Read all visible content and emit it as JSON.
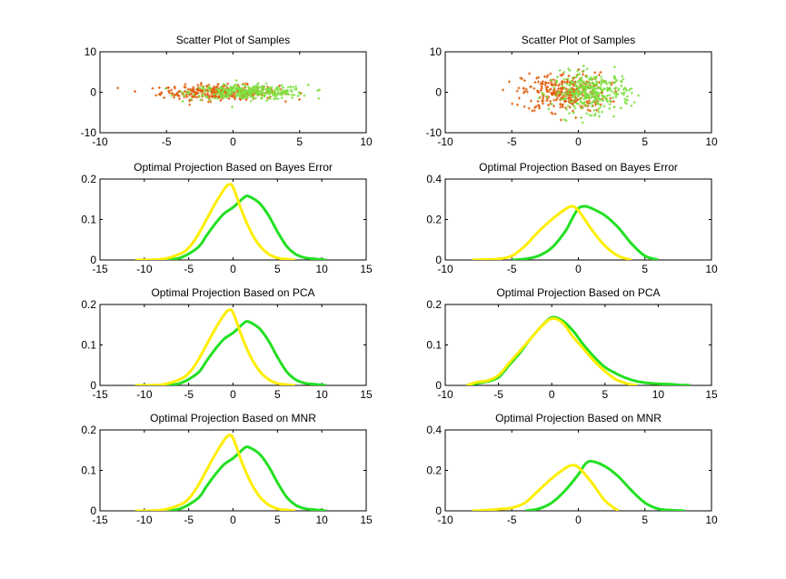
{
  "figure": {
    "background": "#ffffff",
    "colors": {
      "green": "#22e022",
      "yellow": "#ffee00",
      "orange": "#e06010",
      "lightgreen": "#7ee040"
    }
  },
  "chart_data": [
    {
      "type": "scatter",
      "title": "Scatter Plot of Samples",
      "xlim": [
        -10,
        10
      ],
      "ylim": [
        -10,
        10
      ],
      "xticks": [
        -10,
        -5,
        0,
        5,
        10
      ],
      "yticks": [
        -10,
        0,
        10
      ],
      "series": [
        {
          "color": "orange",
          "cloud": {
            "mean": [
              -1,
              0
            ],
            "sd": [
              2.2,
              0.9
            ],
            "count": 320,
            "xrange": [
              -9.8,
              6.8
            ]
          }
        },
        {
          "color": "lightgreen",
          "cloud": {
            "mean": [
              1.2,
              0
            ],
            "sd": [
              2.2,
              0.9
            ],
            "count": 320,
            "xrange": [
              -6,
              7.8
            ]
          }
        }
      ]
    },
    {
      "type": "scatter",
      "title": "Scatter Plot of Samples",
      "xlim": [
        -10,
        10
      ],
      "ylim": [
        -10,
        10
      ],
      "xticks": [
        -10,
        -5,
        0,
        5,
        10
      ],
      "yticks": [
        -10,
        0,
        10
      ],
      "series": [
        {
          "color": "orange",
          "cloud": {
            "mean": [
              -1,
              0
            ],
            "sd": [
              1.6,
              2.4
            ],
            "count": 320,
            "xrange": [
              -6.8,
              3.5
            ]
          }
        },
        {
          "color": "lightgreen",
          "cloud": {
            "mean": [
              1,
              0
            ],
            "sd": [
              1.5,
              2.4
            ],
            "count": 320,
            "xrange": [
              -3,
              4.6
            ]
          }
        }
      ]
    },
    {
      "type": "line",
      "title": "Optimal Projection Based on Bayes Error",
      "xlim": [
        -15,
        15
      ],
      "ylim": [
        0,
        0.2
      ],
      "xticks": [
        -15,
        -10,
        -5,
        0,
        5,
        10,
        15
      ],
      "yticks": [
        0,
        0.1,
        0.2
      ],
      "series": [
        {
          "color": "green",
          "x": [
            -8,
            -6,
            -4,
            -3,
            -2,
            -1,
            0,
            1,
            1.5,
            2,
            3,
            4,
            5,
            6,
            7,
            8,
            9,
            10,
            10.5
          ],
          "y": [
            0,
            0.005,
            0.03,
            0.06,
            0.09,
            0.115,
            0.13,
            0.15,
            0.158,
            0.155,
            0.14,
            0.11,
            0.07,
            0.035,
            0.015,
            0.006,
            0.003,
            0.001,
            0
          ]
        },
        {
          "color": "yellow",
          "x": [
            -11,
            -8,
            -6,
            -5,
            -4,
            -3,
            -2,
            -1,
            -0.5,
            0,
            1,
            2,
            3,
            4,
            5,
            6,
            7
          ],
          "y": [
            0,
            0.002,
            0.015,
            0.03,
            0.06,
            0.1,
            0.14,
            0.175,
            0.186,
            0.18,
            0.12,
            0.07,
            0.035,
            0.015,
            0.005,
            0.002,
            0
          ]
        }
      ]
    },
    {
      "type": "line",
      "title": "Optimal Projection Based on Bayes Error",
      "xlim": [
        -10,
        10
      ],
      "ylim": [
        0,
        0.4
      ],
      "xticks": [
        -10,
        -5,
        0,
        5,
        10
      ],
      "yticks": [
        0,
        0.2,
        0.4
      ],
      "series": [
        {
          "color": "green",
          "x": [
            -5,
            -4,
            -3,
            -2,
            -1,
            -0.5,
            0,
            0.5,
            1,
            2,
            3,
            4,
            5,
            6
          ],
          "y": [
            0,
            0.005,
            0.02,
            0.06,
            0.14,
            0.2,
            0.255,
            0.265,
            0.255,
            0.22,
            0.16,
            0.08,
            0.02,
            0
          ]
        },
        {
          "color": "yellow",
          "x": [
            -8,
            -7,
            -6,
            -5,
            -4,
            -3,
            -2,
            -1,
            -0.5,
            0,
            1,
            2,
            3,
            4
          ],
          "y": [
            0,
            0.002,
            0.005,
            0.02,
            0.07,
            0.14,
            0.2,
            0.25,
            0.265,
            0.245,
            0.15,
            0.07,
            0.02,
            0
          ]
        }
      ]
    },
    {
      "type": "line",
      "title": "Optimal Projection Based on PCA",
      "xlim": [
        -15,
        15
      ],
      "ylim": [
        0,
        0.2
      ],
      "xticks": [
        -15,
        -10,
        -5,
        0,
        5,
        10,
        15
      ],
      "yticks": [
        0,
        0.1,
        0.2
      ],
      "series": [
        {
          "color": "green",
          "x": [
            -8,
            -6,
            -4,
            -3,
            -2,
            -1,
            0,
            1,
            1.5,
            2,
            3,
            4,
            5,
            6,
            7,
            8,
            9,
            10,
            10.5
          ],
          "y": [
            0,
            0.005,
            0.03,
            0.06,
            0.09,
            0.115,
            0.13,
            0.15,
            0.158,
            0.155,
            0.14,
            0.11,
            0.07,
            0.035,
            0.015,
            0.006,
            0.003,
            0.001,
            0
          ]
        },
        {
          "color": "yellow",
          "x": [
            -11,
            -8,
            -6,
            -5,
            -4,
            -3,
            -2,
            -1,
            -0.5,
            0,
            1,
            2,
            3,
            4,
            5,
            6,
            7
          ],
          "y": [
            0,
            0.002,
            0.015,
            0.03,
            0.06,
            0.1,
            0.14,
            0.175,
            0.186,
            0.18,
            0.12,
            0.07,
            0.035,
            0.015,
            0.005,
            0.002,
            0
          ]
        }
      ]
    },
    {
      "type": "line",
      "title": "Optimal Projection Based on PCA",
      "xlim": [
        -10,
        15
      ],
      "ylim": [
        0,
        0.2
      ],
      "xticks": [
        -10,
        -5,
        0,
        5,
        10,
        15
      ],
      "yticks": [
        0,
        0.1,
        0.2
      ],
      "series": [
        {
          "color": "green",
          "x": [
            -8,
            -7,
            -6,
            -5,
            -4,
            -3,
            -2,
            -1,
            0,
            1,
            2,
            3,
            4,
            5,
            6,
            7,
            8,
            9,
            10,
            11,
            12,
            13
          ],
          "y": [
            0,
            0.005,
            0.01,
            0.02,
            0.05,
            0.08,
            0.115,
            0.145,
            0.168,
            0.16,
            0.135,
            0.1,
            0.07,
            0.045,
            0.03,
            0.018,
            0.01,
            0.006,
            0.004,
            0.003,
            0.001,
            0
          ]
        },
        {
          "color": "yellow",
          "x": [
            -8,
            -7,
            -6,
            -5,
            -4,
            -3,
            -2,
            -1,
            0,
            1,
            2,
            3,
            4,
            5,
            6,
            7,
            8
          ],
          "y": [
            0,
            0.008,
            0.012,
            0.025,
            0.055,
            0.085,
            0.115,
            0.145,
            0.165,
            0.155,
            0.12,
            0.09,
            0.06,
            0.035,
            0.015,
            0.005,
            0
          ]
        }
      ]
    },
    {
      "type": "line",
      "title": "Optimal Projection Based on MNR",
      "xlim": [
        -15,
        15
      ],
      "ylim": [
        0,
        0.2
      ],
      "xticks": [
        -15,
        -10,
        -5,
        0,
        5,
        10,
        15
      ],
      "yticks": [
        0,
        0.1,
        0.2
      ],
      "series": [
        {
          "color": "green",
          "x": [
            -8,
            -6,
            -4,
            -3,
            -2,
            -1,
            0,
            1,
            1.5,
            2,
            3,
            4,
            5,
            6,
            7,
            8,
            9,
            10,
            10.5
          ],
          "y": [
            0,
            0.005,
            0.03,
            0.06,
            0.09,
            0.115,
            0.13,
            0.15,
            0.158,
            0.155,
            0.14,
            0.11,
            0.07,
            0.035,
            0.015,
            0.006,
            0.003,
            0.001,
            0
          ]
        },
        {
          "color": "yellow",
          "x": [
            -11,
            -8,
            -6,
            -5,
            -4,
            -3,
            -2,
            -1,
            -0.5,
            0,
            1,
            2,
            3,
            4,
            5,
            6,
            7
          ],
          "y": [
            0,
            0.002,
            0.015,
            0.03,
            0.06,
            0.1,
            0.14,
            0.175,
            0.186,
            0.18,
            0.12,
            0.07,
            0.035,
            0.015,
            0.005,
            0.002,
            0
          ]
        }
      ]
    },
    {
      "type": "line",
      "title": "Optimal Projection Based on MNR",
      "xlim": [
        -10,
        10
      ],
      "ylim": [
        0,
        0.4
      ],
      "xticks": [
        -10,
        -5,
        0,
        5,
        10
      ],
      "yticks": [
        0,
        0.2,
        0.4
      ],
      "series": [
        {
          "color": "green",
          "x": [
            -4,
            -3,
            -2,
            -1,
            0,
            0.5,
            1,
            2,
            3,
            4,
            5,
            6,
            7,
            8
          ],
          "y": [
            0,
            0.01,
            0.04,
            0.1,
            0.18,
            0.23,
            0.245,
            0.22,
            0.17,
            0.1,
            0.04,
            0.01,
            0.003,
            0
          ]
        },
        {
          "color": "yellow",
          "x": [
            -8,
            -7,
            -6,
            -5,
            -4,
            -3,
            -2,
            -1,
            -0.5,
            0,
            1,
            2,
            3
          ],
          "y": [
            0,
            0.003,
            0.008,
            0.015,
            0.04,
            0.1,
            0.16,
            0.21,
            0.225,
            0.215,
            0.14,
            0.05,
            0
          ]
        }
      ]
    }
  ]
}
